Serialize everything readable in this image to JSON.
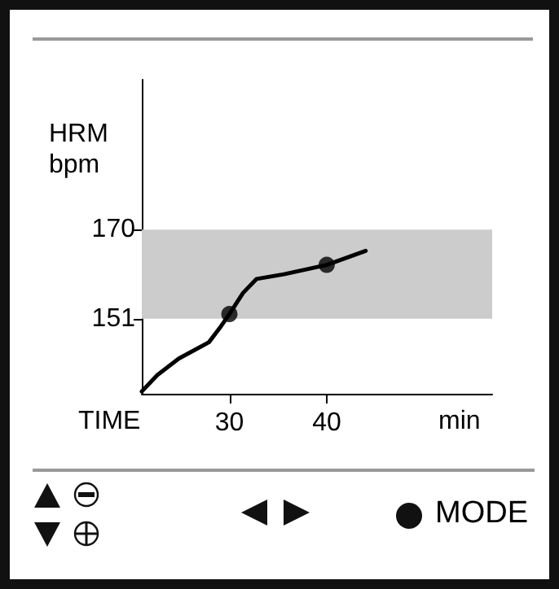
{
  "chart_data": {
    "type": "line",
    "ylabel": "HRM\nbpm",
    "xlabel": "TIME",
    "annotations": [
      "min",
      "MODE"
    ],
    "x": [
      21,
      22.6,
      24.8,
      27.9,
      29,
      30,
      31.4,
      32.8,
      35.6,
      40,
      44
    ],
    "series": [
      {
        "color": "#000000",
        "marker": "none",
        "values": [
          135.5,
          139,
          142.5,
          146,
          149,
          152,
          156.5,
          159.5,
          160.5,
          162.5,
          165.5
        ]
      },
      {
        "type": "scatter",
        "x": [
          30,
          40
        ],
        "color": "#000000",
        "marker": "circle",
        "values": [
          152,
          162.5
        ]
      }
    ],
    "xlim": [
      21,
      57
    ],
    "ylim": [
      135,
      202
    ],
    "xticks": [
      30,
      40
    ],
    "yticks": [
      151,
      170
    ],
    "bands": [
      {
        "axis": "y",
        "from": 151,
        "to": 170,
        "color": "#cccccc"
      }
    ]
  }
}
